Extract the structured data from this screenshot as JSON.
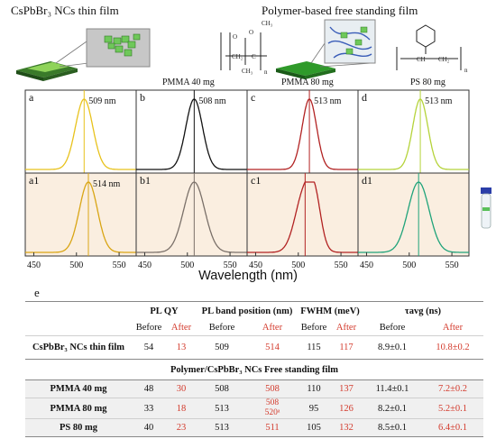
{
  "header": {
    "left_title": "CsPbBr₃ NCs thin film",
    "right_title": "Polymer-based free standing film",
    "pmma_40": "PMMA 40 mg",
    "pmma_80": "PMMA 80 mg",
    "ps_80": "PS 80 mg"
  },
  "xaxis": {
    "label": "Wavelength (nm)",
    "ticks": [
      "450",
      "500",
      "550"
    ]
  },
  "panel_letter": "e",
  "chart_data": {
    "type": "line",
    "xlabel": "Wavelength (nm)",
    "xlim": [
      440,
      570
    ],
    "xticks": [
      450,
      500,
      550
    ],
    "panels": [
      {
        "id": "a",
        "peak_label": "509 nm",
        "peak": 509,
        "fwhm_nm": 24,
        "color": "#e8c21c",
        "row": "top"
      },
      {
        "id": "b",
        "peak_label": "508 nm",
        "peak": 508,
        "fwhm_nm": 23,
        "color": "#111111",
        "row": "top"
      },
      {
        "id": "c",
        "peak_label": "513 nm",
        "peak": 513,
        "fwhm_nm": 20,
        "color": "#b22222",
        "row": "top"
      },
      {
        "id": "d",
        "peak_label": "513 nm",
        "peak": 513,
        "fwhm_nm": 21,
        "color": "#b5d33a",
        "row": "top"
      },
      {
        "id": "a1",
        "peak_label": "514 nm",
        "peak": 514,
        "fwhm_nm": 25,
        "color": "#d9a514",
        "row": "bottom"
      },
      {
        "id": "b1",
        "peak_label": "",
        "peak": 508,
        "fwhm_nm": 29,
        "color": "#7a7069",
        "row": "bottom"
      },
      {
        "id": "c1",
        "peak_label": "",
        "peak": 508,
        "fwhm_nm": 26,
        "color": "#b22222",
        "row": "bottom",
        "shoulder": 520
      },
      {
        "id": "d1",
        "peak_label": "",
        "peak": 511,
        "fwhm_nm": 29,
        "color": "#1fa37a",
        "row": "bottom"
      }
    ]
  },
  "table": {
    "headers": {
      "plqy": "PL QY",
      "band": "PL band position (nm)",
      "fwhm": "FWHM (meV)",
      "tau": "τavg (ns)"
    },
    "subheaders": [
      "Before",
      "After",
      "Before",
      "After",
      "Before",
      "After",
      "Before",
      "After"
    ],
    "section_title": "Polymer/CsPbBr₃ NCs Free standing film",
    "rows": [
      {
        "name": "CsPbBr₃ NCs thin film",
        "vals": [
          "54",
          "13",
          "509",
          "514",
          "115",
          "117",
          "8.9±0.1",
          "10.8±0.2"
        ]
      },
      {
        "name": "PMMA 40 mg",
        "vals": [
          "48",
          "30",
          "508",
          "508",
          "110",
          "137",
          "11.4±0.1",
          "7.2±0.2"
        ]
      },
      {
        "name": "PMMA 80 mg",
        "vals": [
          "33",
          "18",
          "513",
          "508",
          "95",
          "126",
          "8.2±0.1",
          "5.2±0.1"
        ],
        "band_after_extra": "520ᵃ"
      },
      {
        "name": "PS 80 mg",
        "vals": [
          "40",
          "23",
          "513",
          "511",
          "105",
          "132",
          "8.5±0.1",
          "6.4±0.1"
        ]
      }
    ]
  }
}
